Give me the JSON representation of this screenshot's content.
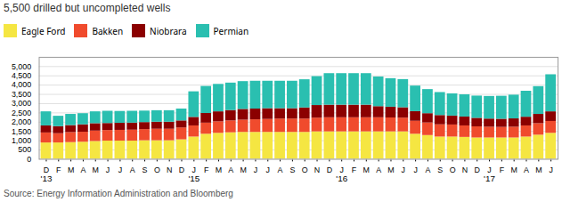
{
  "chart_data": {
    "type": "bar",
    "stacked": true,
    "title": "5,500 drilled but uncompleted wells",
    "source": "Source: Energy Information Administration and Bloomberg",
    "categories": [
      "D",
      "F",
      "M",
      "A",
      "M",
      "J",
      "J",
      "A",
      "S",
      "O",
      "N",
      "D",
      "J",
      "F",
      "M",
      "A",
      "M",
      "J",
      "J",
      "A",
      "S",
      "O",
      "N",
      "D",
      "J",
      "F",
      "M",
      "A",
      "M",
      "J",
      "J",
      "A",
      "S",
      "O",
      "N",
      "D",
      "J",
      "F",
      "M",
      "A",
      "M",
      "J"
    ],
    "series": [
      {
        "name": "Eagle Ford",
        "color": "#f5e642",
        "values": [
          880,
          880,
          900,
          920,
          960,
          980,
          980,
          980,
          1000,
          1000,
          1000,
          1050,
          1200,
          1350,
          1400,
          1430,
          1450,
          1450,
          1450,
          1450,
          1450,
          1450,
          1480,
          1480,
          1480,
          1480,
          1480,
          1480,
          1480,
          1480,
          1350,
          1280,
          1200,
          1200,
          1180,
          1150,
          1150,
          1150,
          1150,
          1200,
          1300,
          1400
        ]
      },
      {
        "name": "Bakken",
        "color": "#f04b2d",
        "values": [
          540,
          500,
          540,
          540,
          560,
          570,
          580,
          590,
          600,
          620,
          620,
          640,
          600,
          600,
          620,
          640,
          660,
          680,
          700,
          720,
          720,
          720,
          740,
          760,
          760,
          760,
          760,
          760,
          750,
          740,
          700,
          680,
          660,
          650,
          620,
          600,
          580,
          570,
          580,
          600,
          620,
          640
        ]
      },
      {
        "name": "Niobrara",
        "color": "#8b0000",
        "values": [
          380,
          380,
          380,
          400,
          400,
          380,
          380,
          380,
          380,
          380,
          380,
          380,
          460,
          520,
          540,
          560,
          580,
          580,
          580,
          560,
          560,
          600,
          680,
          680,
          680,
          680,
          680,
          600,
          580,
          560,
          520,
          500,
          500,
          480,
          480,
          460,
          440,
          440,
          450,
          470,
          500,
          520
        ]
      },
      {
        "name": "Permian",
        "color": "#2abfb0",
        "values": [
          760,
          560,
          600,
          600,
          640,
          660,
          640,
          640,
          620,
          620,
          620,
          640,
          1380,
          1460,
          1480,
          1480,
          1500,
          1500,
          1480,
          1480,
          1480,
          1520,
          1560,
          1700,
          1700,
          1700,
          1700,
          1600,
          1540,
          1520,
          1380,
          1300,
          1240,
          1200,
          1200,
          1200,
          1220,
          1240,
          1280,
          1400,
          1500,
          2000
        ]
      }
    ],
    "annotations": [
      {
        "x": 0,
        "text": "'13"
      },
      {
        "x": 12,
        "text": "'15"
      },
      {
        "x": 24,
        "text": "'16"
      },
      {
        "x": 36,
        "text": "'17"
      }
    ],
    "ylim": [
      0,
      5500
    ],
    "yticks": [
      0,
      500,
      {
        "value": 1000,
        "label": "1,000"
      },
      {
        "value": 1500,
        "label": "1,500"
      },
      {
        "value": 2000,
        "label": "2,000"
      },
      {
        "value": 2500,
        "label": "2,500"
      },
      {
        "value": 3000,
        "label": "3,000"
      },
      {
        "value": 3500,
        "label": "3,500"
      },
      {
        "value": 4000,
        "label": "4,000"
      },
      {
        "value": 4500,
        "label": "4,500"
      },
      {
        "value": 5000,
        "label": "5,000"
      }
    ],
    "grid": true,
    "legend": "top"
  }
}
